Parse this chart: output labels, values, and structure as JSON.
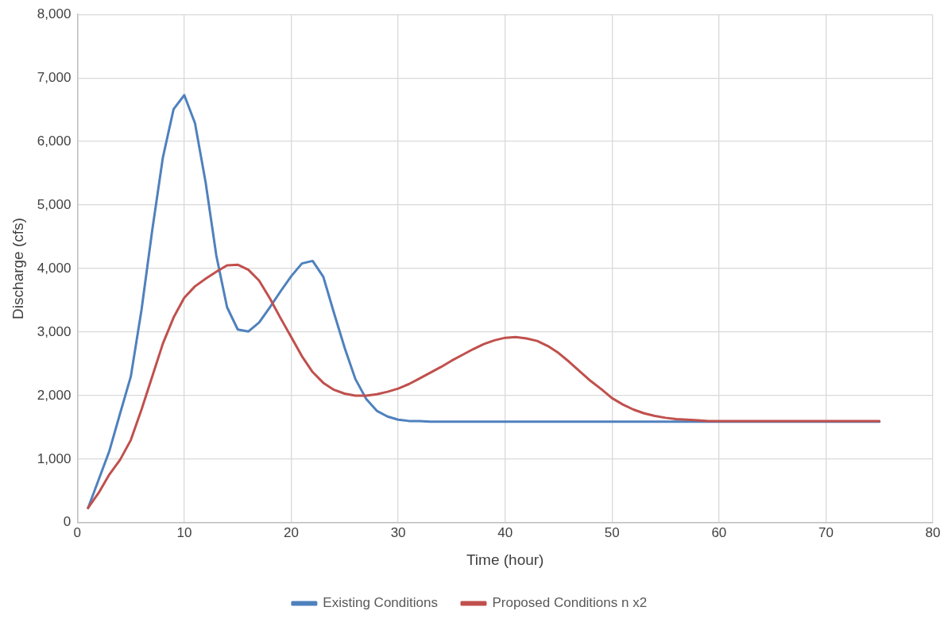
{
  "chart_data": {
    "type": "line",
    "xlabel": "Time (hour)",
    "ylabel": "Discharge (cfs)",
    "xlim": [
      0,
      80
    ],
    "xticks": [
      0,
      10,
      20,
      30,
      40,
      50,
      60,
      70,
      80
    ],
    "ylim": [
      0,
      8000
    ],
    "yticks": [
      {
        "value": 0,
        "label": "0"
      },
      {
        "value": 1000,
        "label": "1,000"
      },
      {
        "value": 2000,
        "label": "2,000"
      },
      {
        "value": 3000,
        "label": "3,000"
      },
      {
        "value": 4000,
        "label": "4,000"
      },
      {
        "value": 5000,
        "label": "5,000"
      },
      {
        "value": 6000,
        "label": "6,000"
      },
      {
        "value": 7000,
        "label": "7,000"
      },
      {
        "value": 8000,
        "label": "8,000"
      }
    ],
    "grid": true,
    "legend": "bottom",
    "marker": "none",
    "line_style": "solid",
    "series": [
      {
        "name": "Existing Conditions",
        "color": "#4f81bd",
        "x": [
          1,
          2,
          3,
          4,
          5,
          6,
          7,
          8,
          9,
          10,
          11,
          12,
          13,
          14,
          15,
          16,
          17,
          18,
          19,
          20,
          21,
          22,
          23,
          24,
          25,
          26,
          27,
          28,
          29,
          30,
          31,
          32,
          33,
          75
        ],
        "values": [
          230,
          680,
          1130,
          1720,
          2300,
          3350,
          4600,
          5750,
          6510,
          6730,
          6290,
          5350,
          4200,
          3390,
          3040,
          3010,
          3150,
          3390,
          3640,
          3880,
          4080,
          4120,
          3870,
          3300,
          2750,
          2260,
          1950,
          1760,
          1670,
          1620,
          1600,
          1600,
          1590,
          1590
        ]
      },
      {
        "name": "Proposed Conditions n x2",
        "color": "#c0504d",
        "x": [
          1,
          2,
          3,
          4,
          5,
          6,
          7,
          8,
          9,
          10,
          11,
          12,
          13,
          14,
          15,
          16,
          17,
          18,
          19,
          20,
          21,
          22,
          23,
          24,
          25,
          26,
          27,
          28,
          29,
          30,
          31,
          32,
          33,
          34,
          35,
          36,
          37,
          38,
          39,
          40,
          41,
          42,
          43,
          44,
          45,
          46,
          47,
          48,
          49,
          50,
          51,
          52,
          53,
          54,
          55,
          56,
          57,
          58,
          59,
          75
        ],
        "values": [
          230,
          470,
          760,
          990,
          1300,
          1780,
          2300,
          2820,
          3230,
          3540,
          3720,
          3840,
          3950,
          4050,
          4060,
          3980,
          3810,
          3530,
          3220,
          2920,
          2620,
          2370,
          2200,
          2090,
          2030,
          2000,
          2000,
          2020,
          2060,
          2110,
          2180,
          2270,
          2360,
          2450,
          2550,
          2640,
          2730,
          2810,
          2870,
          2910,
          2920,
          2900,
          2860,
          2780,
          2670,
          2530,
          2380,
          2230,
          2100,
          1960,
          1860,
          1780,
          1720,
          1680,
          1650,
          1630,
          1620,
          1610,
          1600,
          1600
        ]
      }
    ]
  }
}
